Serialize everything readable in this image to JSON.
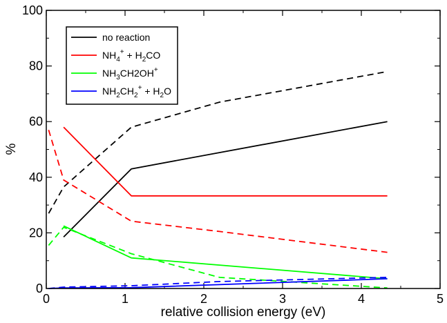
{
  "chart_data": {
    "type": "line",
    "title": "",
    "xlabel": "relative collision energy (eV)",
    "ylabel": "%",
    "xlim": [
      0,
      5
    ],
    "ylim": [
      0,
      100
    ],
    "xticks": [
      0,
      1,
      2,
      3,
      4,
      5
    ],
    "yticks": [
      0,
      20,
      40,
      60,
      80,
      100
    ],
    "grid": false,
    "legend_position": "top-left",
    "series": [
      {
        "name": "no reaction",
        "color": "#000000",
        "style": "solid",
        "x": [
          0.22,
          1.08,
          4.33
        ],
        "y": [
          18.5,
          43,
          60
        ]
      },
      {
        "name": "no reaction",
        "color": "#000000",
        "style": "dashed",
        "x": [
          0.03,
          0.22,
          1.08,
          2.2,
          4.33
        ],
        "y": [
          27,
          36.5,
          58,
          67,
          78
        ]
      },
      {
        "name": "NH4+ + H2CO",
        "color": "#ff0000",
        "style": "solid",
        "x": [
          0.22,
          1.08,
          4.33
        ],
        "y": [
          58,
          33.3,
          33.3
        ]
      },
      {
        "name": "NH4+ + H2CO",
        "color": "#ff0000",
        "style": "dashed",
        "x": [
          0.03,
          0.22,
          1.08,
          2.2,
          4.33
        ],
        "y": [
          57,
          39,
          24.2,
          20.5,
          13
        ]
      },
      {
        "name": "NH3CH2OH+",
        "color": "#00ff00",
        "style": "solid",
        "x": [
          0.22,
          1.08,
          4.33
        ],
        "y": [
          22.5,
          11,
          3.5
        ]
      },
      {
        "name": "NH3CH2OH+",
        "color": "#00ff00",
        "style": "dashed",
        "x": [
          0.03,
          0.22,
          1.08,
          2.2,
          4.33
        ],
        "y": [
          15.5,
          22,
          12.5,
          4,
          0.2
        ]
      },
      {
        "name": "NH2CH2+ + H2O",
        "color": "#0000ff",
        "style": "solid",
        "x": [
          0.03,
          0.22,
          1.08,
          4.33
        ],
        "y": [
          0,
          0.2,
          0.3,
          3.5
        ]
      },
      {
        "name": "NH2CH2+ + H2O",
        "color": "#0000ff",
        "style": "dashed",
        "x": [
          0.03,
          0.22,
          1.08,
          2.2,
          4.33
        ],
        "y": [
          0,
          0.5,
          1,
          2.5,
          4
        ]
      }
    ],
    "legend": [
      {
        "color": "#000000",
        "parts": [
          [
            "n",
            "no reaction"
          ]
        ]
      },
      {
        "color": "#ff0000",
        "parts": [
          [
            "n",
            "NH"
          ],
          [
            "sub",
            "4"
          ],
          [
            "sup",
            "+"
          ],
          [
            "n",
            " + H"
          ],
          [
            "sub",
            "2"
          ],
          [
            "n",
            "CO"
          ]
        ]
      },
      {
        "color": "#00ff00",
        "parts": [
          [
            "n",
            "NH"
          ],
          [
            "sub",
            "3"
          ],
          [
            "n",
            "CH2OH"
          ],
          [
            "sup",
            "+"
          ]
        ]
      },
      {
        "color": "#0000ff",
        "parts": [
          [
            "n",
            "NH"
          ],
          [
            "sub",
            "2"
          ],
          [
            "n",
            "CH"
          ],
          [
            "sub",
            "2"
          ],
          [
            "sup",
            "+"
          ],
          [
            "n",
            " + H"
          ],
          [
            "sub",
            "2"
          ],
          [
            "n",
            "O"
          ]
        ]
      }
    ]
  }
}
